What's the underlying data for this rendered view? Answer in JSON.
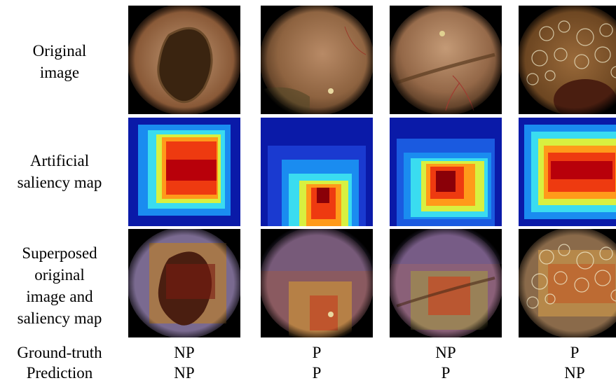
{
  "row_labels": {
    "original": [
      "Original",
      "image"
    ],
    "saliency": [
      "Artificial",
      "saliency map"
    ],
    "superposed": [
      "Superposed",
      "original",
      "image and",
      "saliency map"
    ]
  },
  "ground_truth": {
    "label": "Ground-truth",
    "values": [
      "NP",
      "P",
      "NP",
      "P"
    ]
  },
  "prediction": {
    "label": "Prediction",
    "values": [
      "NP",
      "P",
      "P",
      "NP"
    ]
  },
  "images": {
    "original": [
      "endoscopy-frame-dark-lumen",
      "endoscopy-frame-mucosa",
      "endoscopy-frame-fold",
      "endoscopy-frame-bubbles"
    ],
    "saliency": [
      "heatmap-center-large",
      "heatmap-bottom-center",
      "heatmap-center",
      "heatmap-center-wide"
    ],
    "superposed": [
      "overlay-1",
      "overlay-2",
      "overlay-3",
      "overlay-4"
    ]
  },
  "colors": {
    "heat_low": "#0a1aa8",
    "heat_high": "#b8000a"
  }
}
